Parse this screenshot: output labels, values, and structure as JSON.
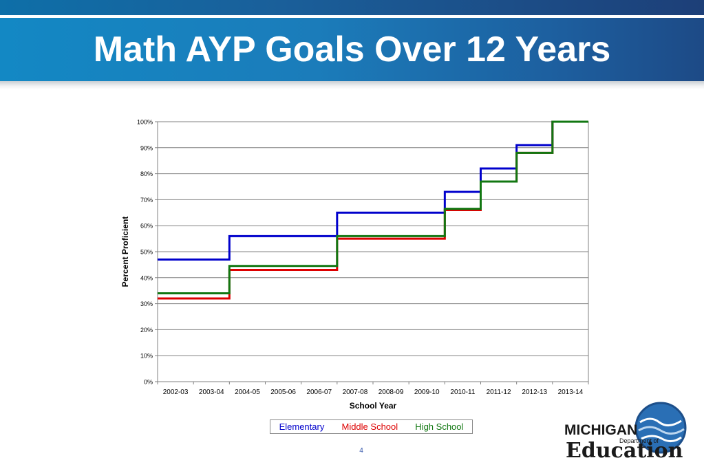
{
  "slide": {
    "title": "Math AYP Goals Over 12 Years",
    "page_number": "4"
  },
  "logo": {
    "line1": "MICHIGAN",
    "line2": "Department of",
    "line3": "Education"
  },
  "chart_data": {
    "type": "line",
    "xlabel": "School Year",
    "ylabel": "Percent Proficient",
    "categories": [
      "2002-03",
      "2003-04",
      "2004-05",
      "2005-06",
      "2006-07",
      "2007-08",
      "2008-09",
      "2009-10",
      "2010-11",
      "2011-12",
      "2012-13",
      "2013-14"
    ],
    "ylim": [
      0,
      100
    ],
    "yticks": [
      "0%",
      "10%",
      "20%",
      "30%",
      "40%",
      "50%",
      "60%",
      "70%",
      "80%",
      "90%",
      "100%"
    ],
    "grid": true,
    "legend_position": "bottom",
    "series": [
      {
        "name": "Elementary",
        "color": "#0000cc",
        "values": [
          47,
          47,
          56,
          56,
          56,
          65,
          65,
          65,
          73,
          82,
          91,
          100
        ]
      },
      {
        "name": "Middle School",
        "color": "#dd0000",
        "values": [
          32,
          32,
          43,
          43,
          43,
          55,
          55,
          55,
          66,
          77,
          88,
          100
        ]
      },
      {
        "name": "High School",
        "color": "#117711",
        "values": [
          34,
          34,
          44.5,
          44.5,
          44.5,
          56,
          56,
          56,
          66.5,
          77,
          88,
          100
        ]
      }
    ]
  }
}
